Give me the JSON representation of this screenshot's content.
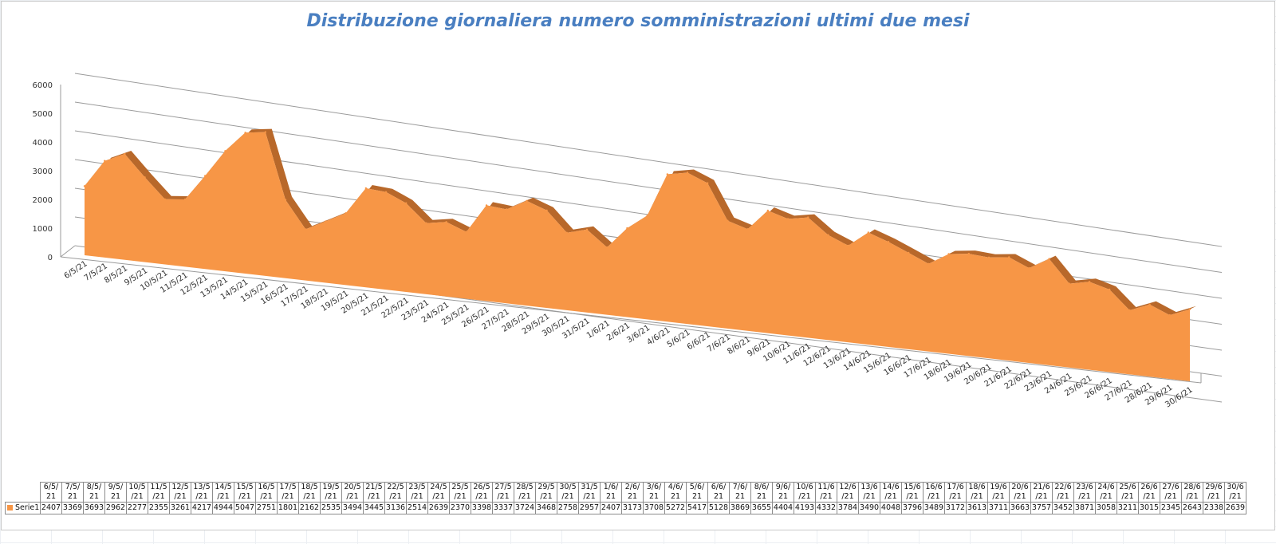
{
  "chart_data": {
    "type": "area",
    "title": "Distribuzione giornaliera numero somministrazioni ultimi due mesi",
    "series_color": "#f79646",
    "categories": [
      "6/5/21",
      "7/5/21",
      "8/5/21",
      "9/5/21",
      "10/5/21",
      "11/5/21",
      "12/5/21",
      "13/5/21",
      "14/5/21",
      "15/5/21",
      "16/5/21",
      "17/5/21",
      "18/5/21",
      "19/5/21",
      "20/5/21",
      "21/5/21",
      "22/5/21",
      "23/5/21",
      "24/5/21",
      "25/5/21",
      "26/5/21",
      "27/5/21",
      "28/5/21",
      "29/5/21",
      "30/5/21",
      "31/5/21",
      "1/6/21",
      "2/6/21",
      "3/6/21",
      "4/6/21",
      "5/6/21",
      "6/6/21",
      "7/6/21",
      "8/6/21",
      "9/6/21",
      "10/6/21",
      "11/6/21",
      "12/6/21",
      "13/6/21",
      "14/6/21",
      "15/6/21",
      "16/6/21",
      "17/6/21",
      "18/6/21",
      "19/6/21",
      "20/6/21",
      "21/6/21",
      "22/6/21",
      "23/6/21",
      "24/6/21",
      "25/6/21",
      "26/6/21",
      "27/6/21",
      "28/6/21",
      "29/6/21",
      "30/6/21"
    ],
    "table_headers": [
      "6/5/ 21",
      "7/5/ 21",
      "8/5/ 21",
      "9/5/ 21",
      "10/5 /21",
      "11/5 /21",
      "12/5 /21",
      "13/5 /21",
      "14/5 /21",
      "15/5 /21",
      "16/5 /21",
      "17/5 /21",
      "18/5 /21",
      "19/5 /21",
      "20/5 /21",
      "21/5 /21",
      "22/5 /21",
      "23/5 /21",
      "24/5 /21",
      "25/5 /21",
      "26/5 /21",
      "27/5 /21",
      "28/5 /21",
      "29/5 /21",
      "30/5 /21",
      "31/5 /21",
      "1/6/ 21",
      "2/6/ 21",
      "3/6/ 21",
      "4/6/ 21",
      "5/6/ 21",
      "6/6/ 21",
      "7/6/ 21",
      "8/6/ 21",
      "9/6/ 21",
      "10/6 /21",
      "11/6 /21",
      "12/6 /21",
      "13/6 /21",
      "14/6 /21",
      "15/6 /21",
      "16/6 /21",
      "17/6 /21",
      "18/6 /21",
      "19/6 /21",
      "20/6 /21",
      "21/6 /21",
      "22/6 /21",
      "23/6 /21",
      "24/6 /21",
      "25/6 /21",
      "26/6 /21",
      "27/6 /21",
      "28/6 /21",
      "29/6 /21",
      "30/6 /21"
    ],
    "series": [
      {
        "name": "Serie1",
        "values": [
          2407,
          3369,
          3693,
          2962,
          2277,
          2355,
          3261,
          4217,
          4944,
          5047,
          2751,
          1801,
          2162,
          2535,
          3494,
          3445,
          3136,
          2514,
          2639,
          2370,
          3398,
          3337,
          3724,
          3468,
          2758,
          2957,
          2407,
          3173,
          3708,
          5272,
          5417,
          5128,
          3869,
          3655,
          4404,
          4193,
          4332,
          3784,
          3490,
          4048,
          3796,
          3489,
          3172,
          3613,
          3711,
          3663,
          3757,
          3452,
          3871,
          3058,
          3211,
          3015,
          2345,
          2643,
          2338,
          2639
        ]
      }
    ],
    "yticks": [
      0,
      1000,
      2000,
      3000,
      4000,
      5000,
      6000
    ],
    "ylim": [
      0,
      6000
    ],
    "grid": true,
    "legend": "data-table"
  }
}
